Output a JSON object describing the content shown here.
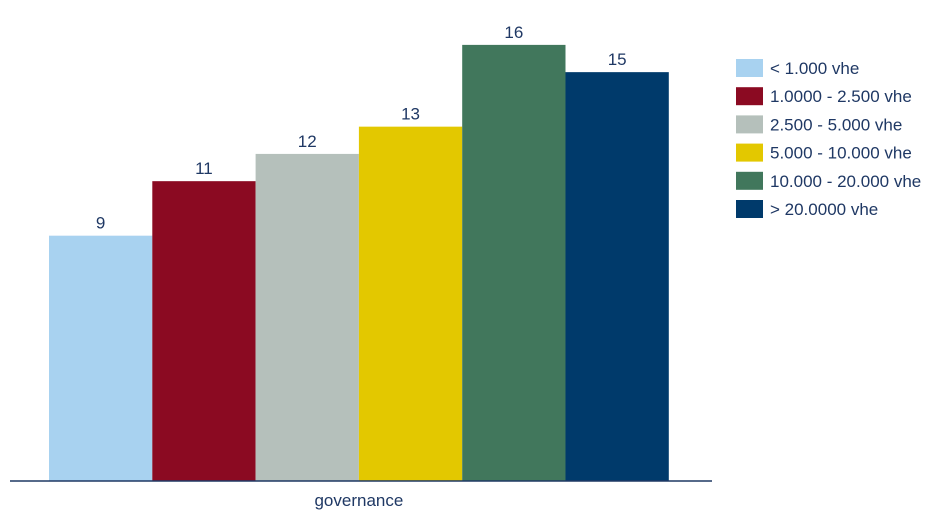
{
  "chart_data": {
    "type": "bar",
    "categories": [
      "governance"
    ],
    "series": [
      {
        "name": "< 1.000 vhe",
        "values": [
          9
        ],
        "color": "#a8d2f0"
      },
      {
        "name": "1.0000  - 2.500 vhe",
        "values": [
          11
        ],
        "color": "#8b0a22"
      },
      {
        "name": "2.500 - 5.000 vhe",
        "values": [
          12
        ],
        "color": "#b5c0bb"
      },
      {
        "name": "5.000 - 10.000 vhe",
        "values": [
          13
        ],
        "color": "#e3c800"
      },
      {
        "name": "10.000 - 20.000 vhe",
        "values": [
          16
        ],
        "color": "#41775c"
      },
      {
        "name": "> 20.0000 vhe",
        "values": [
          15
        ],
        "color": "#003a6b"
      }
    ],
    "title": "",
    "xlabel": "",
    "ylabel": "",
    "ylim": [
      0,
      17.5
    ],
    "grid": false,
    "legend_position": "right",
    "axis_color": "#1f3864"
  }
}
